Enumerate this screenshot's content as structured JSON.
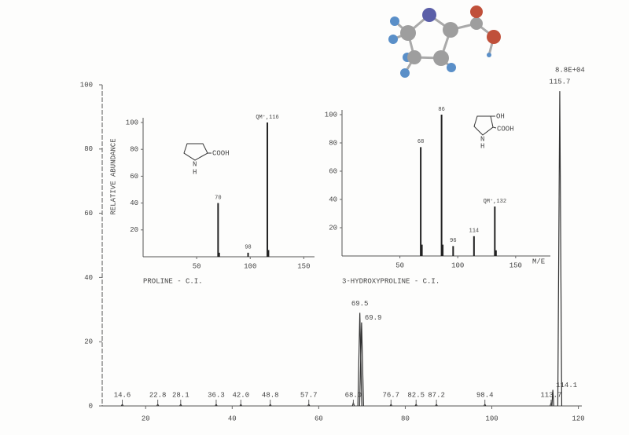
{
  "chart_data": [
    {
      "type": "spectrum",
      "scale_label": "8.8E+04",
      "x": [
        14.6,
        22.8,
        28.1,
        36.3,
        42.0,
        48.8,
        57.7,
        68.0,
        69.5,
        69.9,
        76.7,
        82.5,
        87.2,
        98.4,
        113.7,
        114.1,
        115.7
      ],
      "peak_labels": [
        "14.6",
        "22.8",
        "28.1",
        "36.3",
        "42.0",
        "48.8",
        "57.7",
        "68.0",
        "69.5",
        "69.9",
        "76.7",
        "82.5",
        "87.2",
        "98.4",
        "113.7",
        "114.1",
        "115.7"
      ],
      "values": [
        0.5,
        0.5,
        0.5,
        0.5,
        0.5,
        0.5,
        0.5,
        1,
        29,
        26,
        0.5,
        0.5,
        0.5,
        0.5,
        1,
        5,
        98
      ],
      "xlim": [
        9.6,
        120.8
      ],
      "xticks": [
        20,
        40,
        60,
        80,
        100,
        120
      ],
      "ylim": [
        0,
        100
      ],
      "yticks": [
        0,
        20,
        40,
        60,
        80,
        100
      ],
      "color": "#333"
    },
    {
      "type": "bar",
      "title": "PROLINE - C.I.",
      "ylabel": "RELATIVE ABUNDANCE",
      "structure_labels": [
        "COOH",
        "N",
        "H"
      ],
      "x": [
        70,
        71,
        98,
        116,
        117
      ],
      "values": [
        40,
        3,
        3,
        100,
        5
      ],
      "bar_labels": [
        "70",
        null,
        "98",
        "QM⁺,116",
        null
      ],
      "xlim": [
        0,
        160
      ],
      "xticks": [
        50,
        100,
        150
      ],
      "ylim": [
        0,
        100
      ],
      "yticks": [
        20,
        40,
        60,
        80,
        100
      ],
      "color": "#222"
    },
    {
      "type": "bar",
      "title": "3-HYDROXYPROLINE - C.I.",
      "xlabel": "M/E",
      "structure_labels": [
        "OH",
        "COOH",
        "N",
        "H"
      ],
      "x": [
        68,
        69,
        86,
        87,
        96,
        114,
        132,
        133
      ],
      "values": [
        77,
        8,
        100,
        8,
        7,
        14,
        35,
        4
      ],
      "bar_labels": [
        "68",
        null,
        "86",
        null,
        "96",
        "114",
        "QM⁺,132",
        null
      ],
      "xlim": [
        0,
        180
      ],
      "xticks": [
        50,
        100,
        150
      ],
      "ylim": [
        0,
        100
      ],
      "yticks": [
        20,
        40,
        60,
        80,
        100
      ],
      "color": "#222"
    }
  ]
}
